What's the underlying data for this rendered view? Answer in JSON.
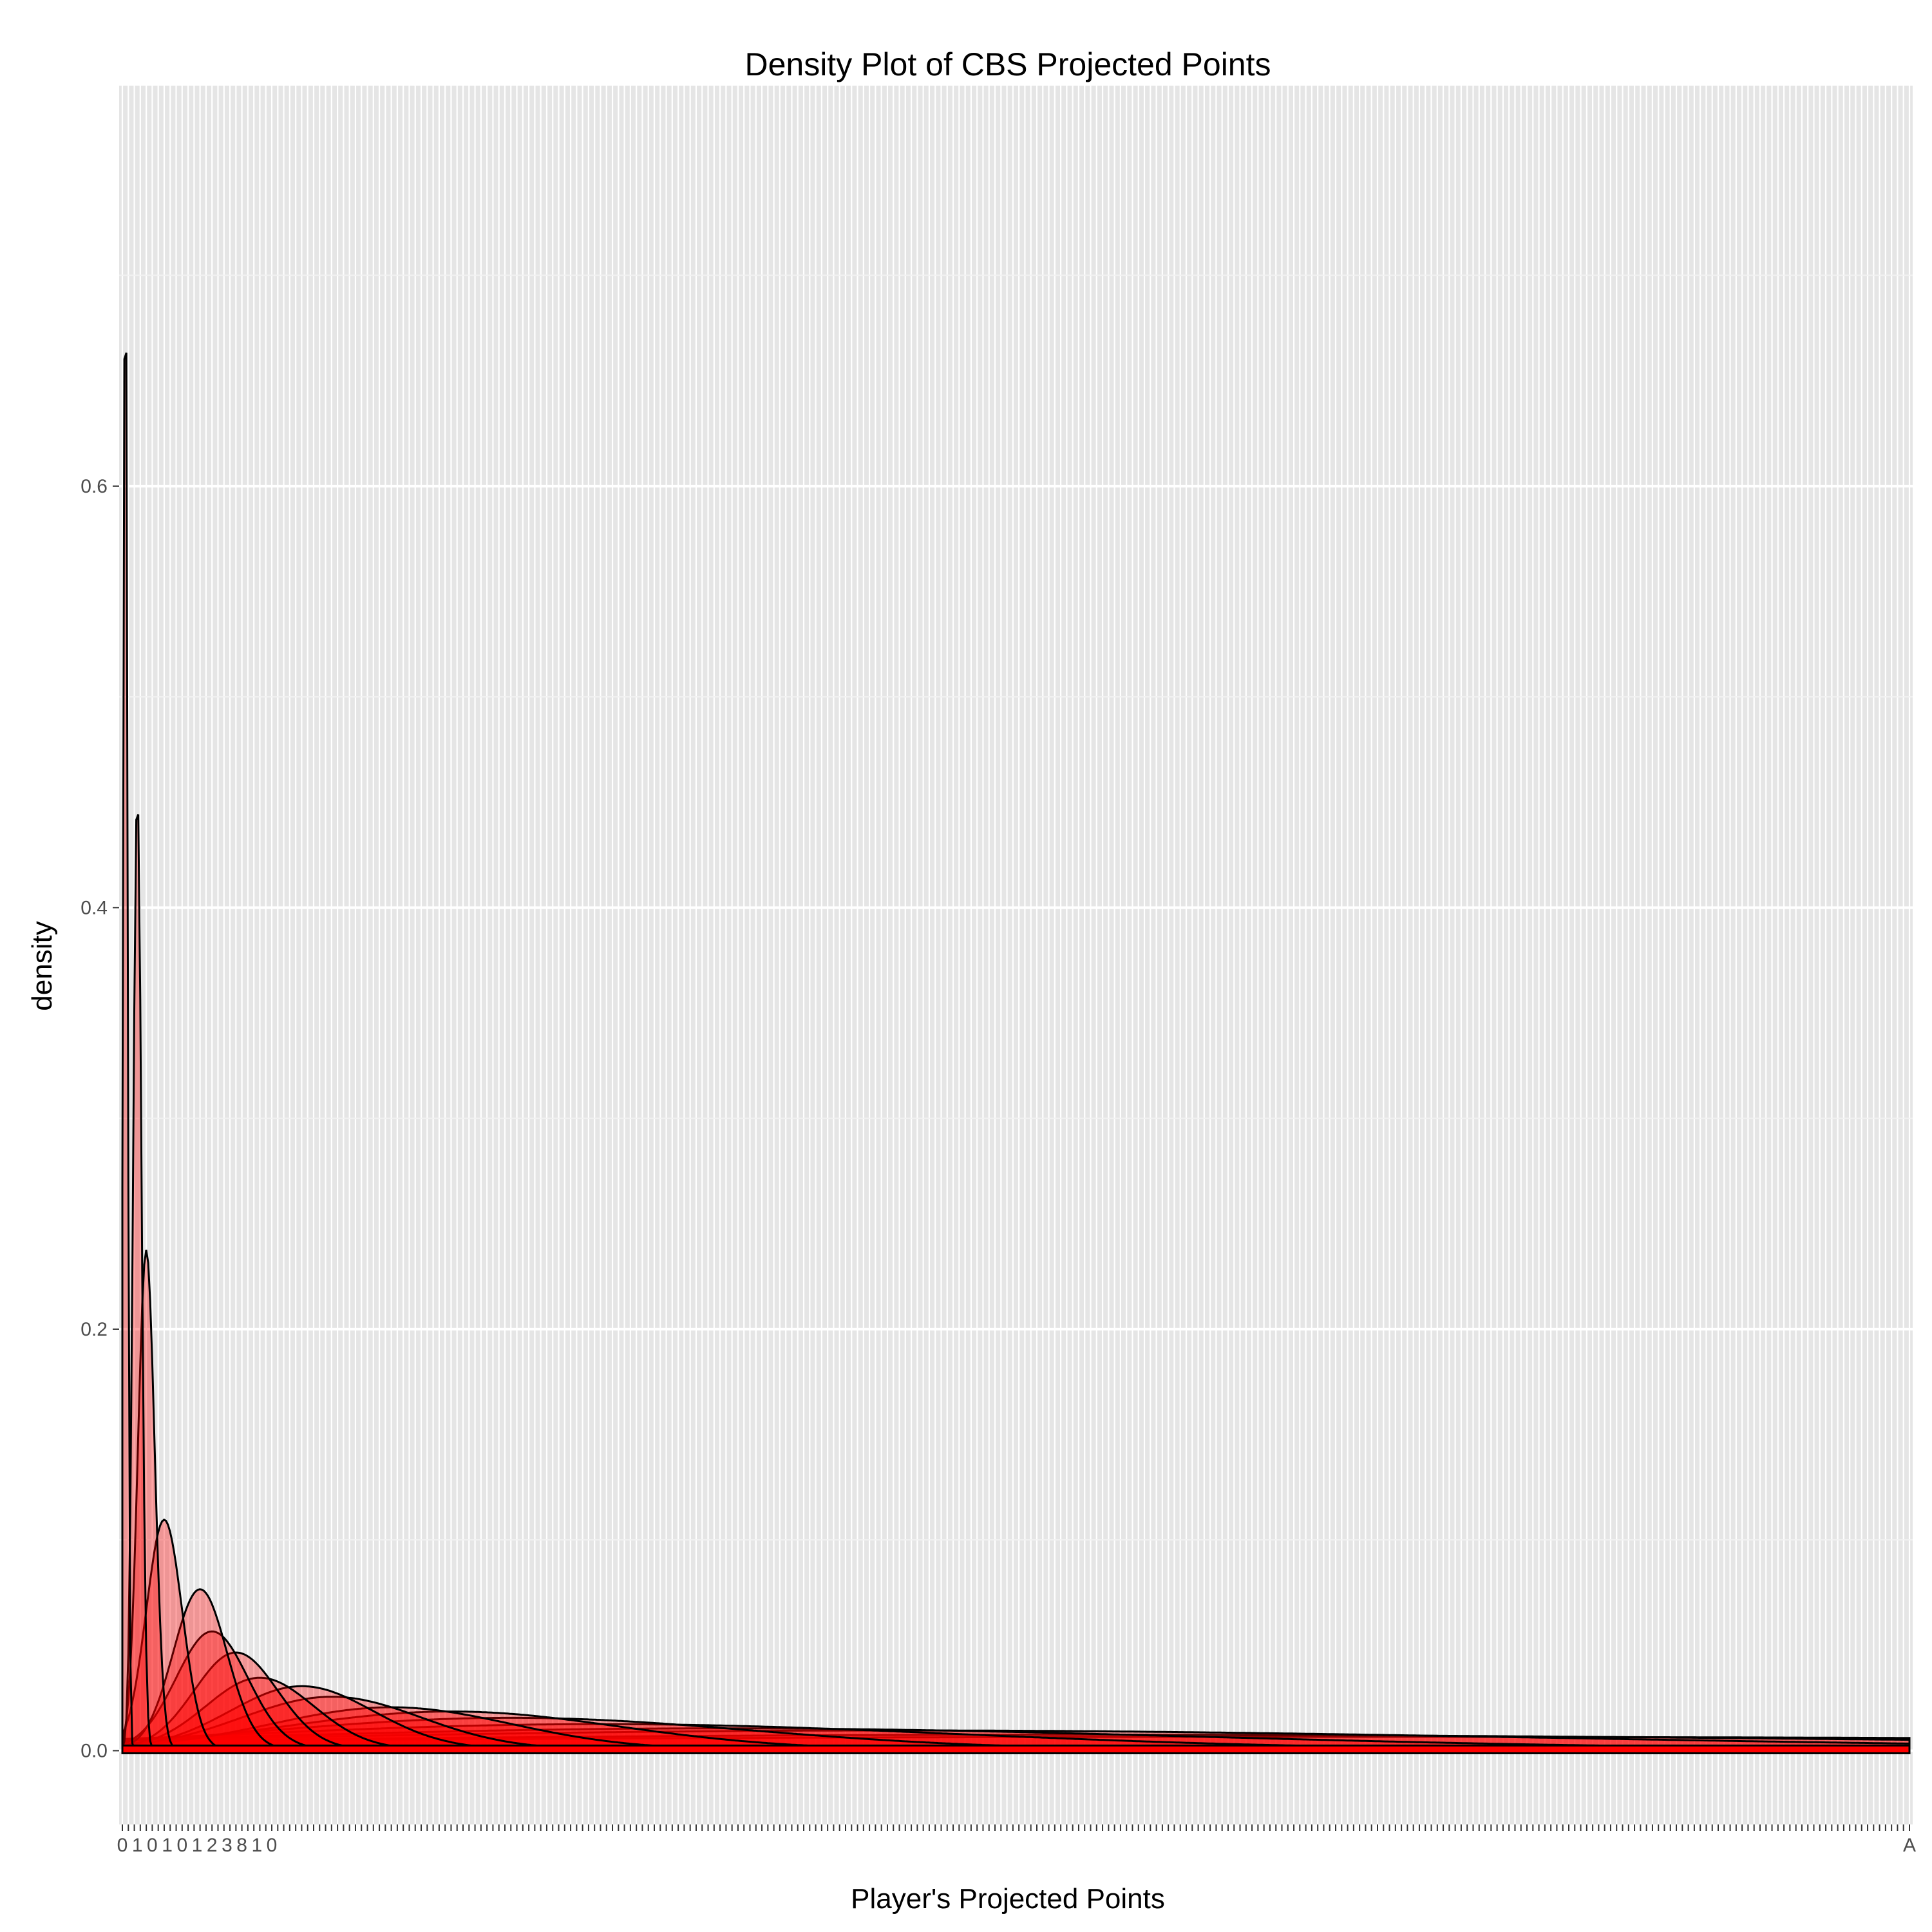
{
  "chart_data": {
    "type": "area",
    "title": "Density Plot of CBS Projected Points",
    "xlabel": "Player's Projected Points",
    "ylabel": "density",
    "y_ticks": [
      "0.0",
      "0.2",
      "0.4",
      "0.6"
    ],
    "y_tick_values": [
      0,
      0.2,
      0.4,
      0.6
    ],
    "ylim": [
      -0.035,
      0.79
    ],
    "x_category_count": 300,
    "x_tick_labels_visible": [
      "0",
      "1",
      "0",
      "1",
      "0",
      "1",
      "2",
      "3",
      "8",
      "1",
      "0",
      "A"
    ],
    "grid": true,
    "legend": "none",
    "fill_color": "#ff0000",
    "fill_opacity": 0.35,
    "line_color": "#000000",
    "panel_background": "#e5e5e5",
    "grid_color": "#ffffff",
    "series": [
      {
        "peak_x": 0.5,
        "peak_y": 0.74,
        "sd": 0.35
      },
      {
        "peak_x": 2.5,
        "peak_y": 0.455,
        "sd": 0.7
      },
      {
        "peak_x": 4,
        "peak_y": 0.237,
        "sd": 1.4
      },
      {
        "peak_x": 7,
        "peak_y": 0.109,
        "sd": 3
      },
      {
        "peak_x": 13,
        "peak_y": 0.076,
        "sd": 4.5
      },
      {
        "peak_x": 15,
        "peak_y": 0.056,
        "sd": 6
      },
      {
        "peak_x": 19,
        "peak_y": 0.046,
        "sd": 7
      },
      {
        "peak_x": 23,
        "peak_y": 0.034,
        "sd": 9
      },
      {
        "peak_x": 30,
        "peak_y": 0.03,
        "sd": 12
      },
      {
        "peak_x": 35,
        "peak_y": 0.025,
        "sd": 15
      },
      {
        "peak_x": 45,
        "peak_y": 0.02,
        "sd": 20
      },
      {
        "peak_x": 55,
        "peak_y": 0.018,
        "sd": 28
      },
      {
        "peak_x": 65,
        "peak_y": 0.015,
        "sd": 40
      },
      {
        "peak_x": 80,
        "peak_y": 0.012,
        "sd": 60
      },
      {
        "peak_x": 100,
        "peak_y": 0.01,
        "sd": 80
      },
      {
        "peak_x": 130,
        "peak_y": 0.009,
        "sd": 110
      },
      {
        "peak_x": 160,
        "peak_y": 0.007,
        "sd": 150
      },
      {
        "peak_x": 200,
        "peak_y": 0.006,
        "sd": 220
      }
    ]
  }
}
